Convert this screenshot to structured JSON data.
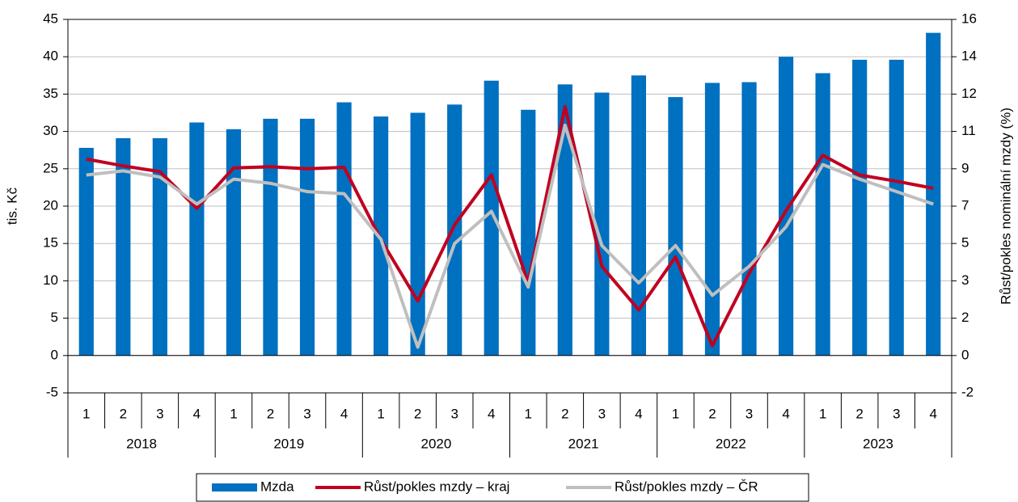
{
  "chart_data": {
    "type": "bar_line",
    "y_label": "tis. Kč",
    "y2_label": "Růst/pokles nominální mzdy (%)",
    "categories": [
      "1",
      "2",
      "3",
      "4",
      "1",
      "2",
      "3",
      "4",
      "1",
      "2",
      "3",
      "4",
      "1",
      "2",
      "3",
      "4",
      "1",
      "2",
      "3",
      "4",
      "1",
      "2",
      "3",
      "4"
    ],
    "years": [
      "2018",
      "2019",
      "2020",
      "2021",
      "2022",
      "2023"
    ],
    "series": [
      {
        "name": "Mzda",
        "type": "bar",
        "color": "#0070c0",
        "values": [
          27.8,
          29.1,
          29.1,
          31.2,
          30.3,
          31.7,
          31.7,
          33.9,
          32.0,
          32.5,
          33.6,
          36.8,
          32.9,
          36.3,
          35.2,
          37.5,
          34.6,
          36.5,
          36.6,
          40.0,
          37.8,
          39.6,
          39.6,
          43.2
        ]
      },
      {
        "name": "Růst/pokles mzdy – kraj",
        "type": "line",
        "axis": "y2",
        "color": "#c00020",
        "values": [
          9.27,
          8.94,
          8.66,
          6.9,
          8.84,
          8.9,
          8.8,
          8.87,
          5.38,
          2.43,
          6.1,
          8.5,
          3.3,
          11.8,
          4.1,
          2.0,
          4.55,
          0.27,
          3.76,
          6.78,
          9.45,
          8.5,
          8.2,
          7.86
        ]
      },
      {
        "name": "Růst/pokles mzdy – ČR",
        "type": "line",
        "axis": "y2",
        "color": "#bfbfbf",
        "values": [
          8.5,
          8.7,
          8.4,
          7.1,
          8.3,
          8.1,
          7.7,
          7.6,
          5.4,
          0.2,
          5.2,
          6.75,
          3.1,
          10.9,
          5.1,
          3.3,
          5.1,
          2.7,
          4.1,
          6.0,
          9.0,
          8.3,
          7.7,
          7.1
        ]
      }
    ],
    "ylim": [
      -5,
      45
    ],
    "yticks": [
      -5,
      0,
      5,
      10,
      15,
      20,
      25,
      30,
      35,
      40,
      45
    ],
    "y2lim": [
      -2,
      16
    ],
    "y2ticks": [
      -2,
      {
        "value": -0.2,
        "label": "0"
      },
      {
        "value": 1.6,
        "label": "2"
      },
      {
        "value": 3.4,
        "label": "3"
      },
      {
        "value": 5.2,
        "label": "5"
      },
      7,
      {
        "value": 8.8,
        "label": "9"
      },
      {
        "value": 10.6,
        "label": "11"
      },
      {
        "value": 12.4,
        "label": "12"
      },
      {
        "value": 14.2,
        "label": "14"
      },
      16
    ],
    "grid": true,
    "legend": "bottom"
  }
}
